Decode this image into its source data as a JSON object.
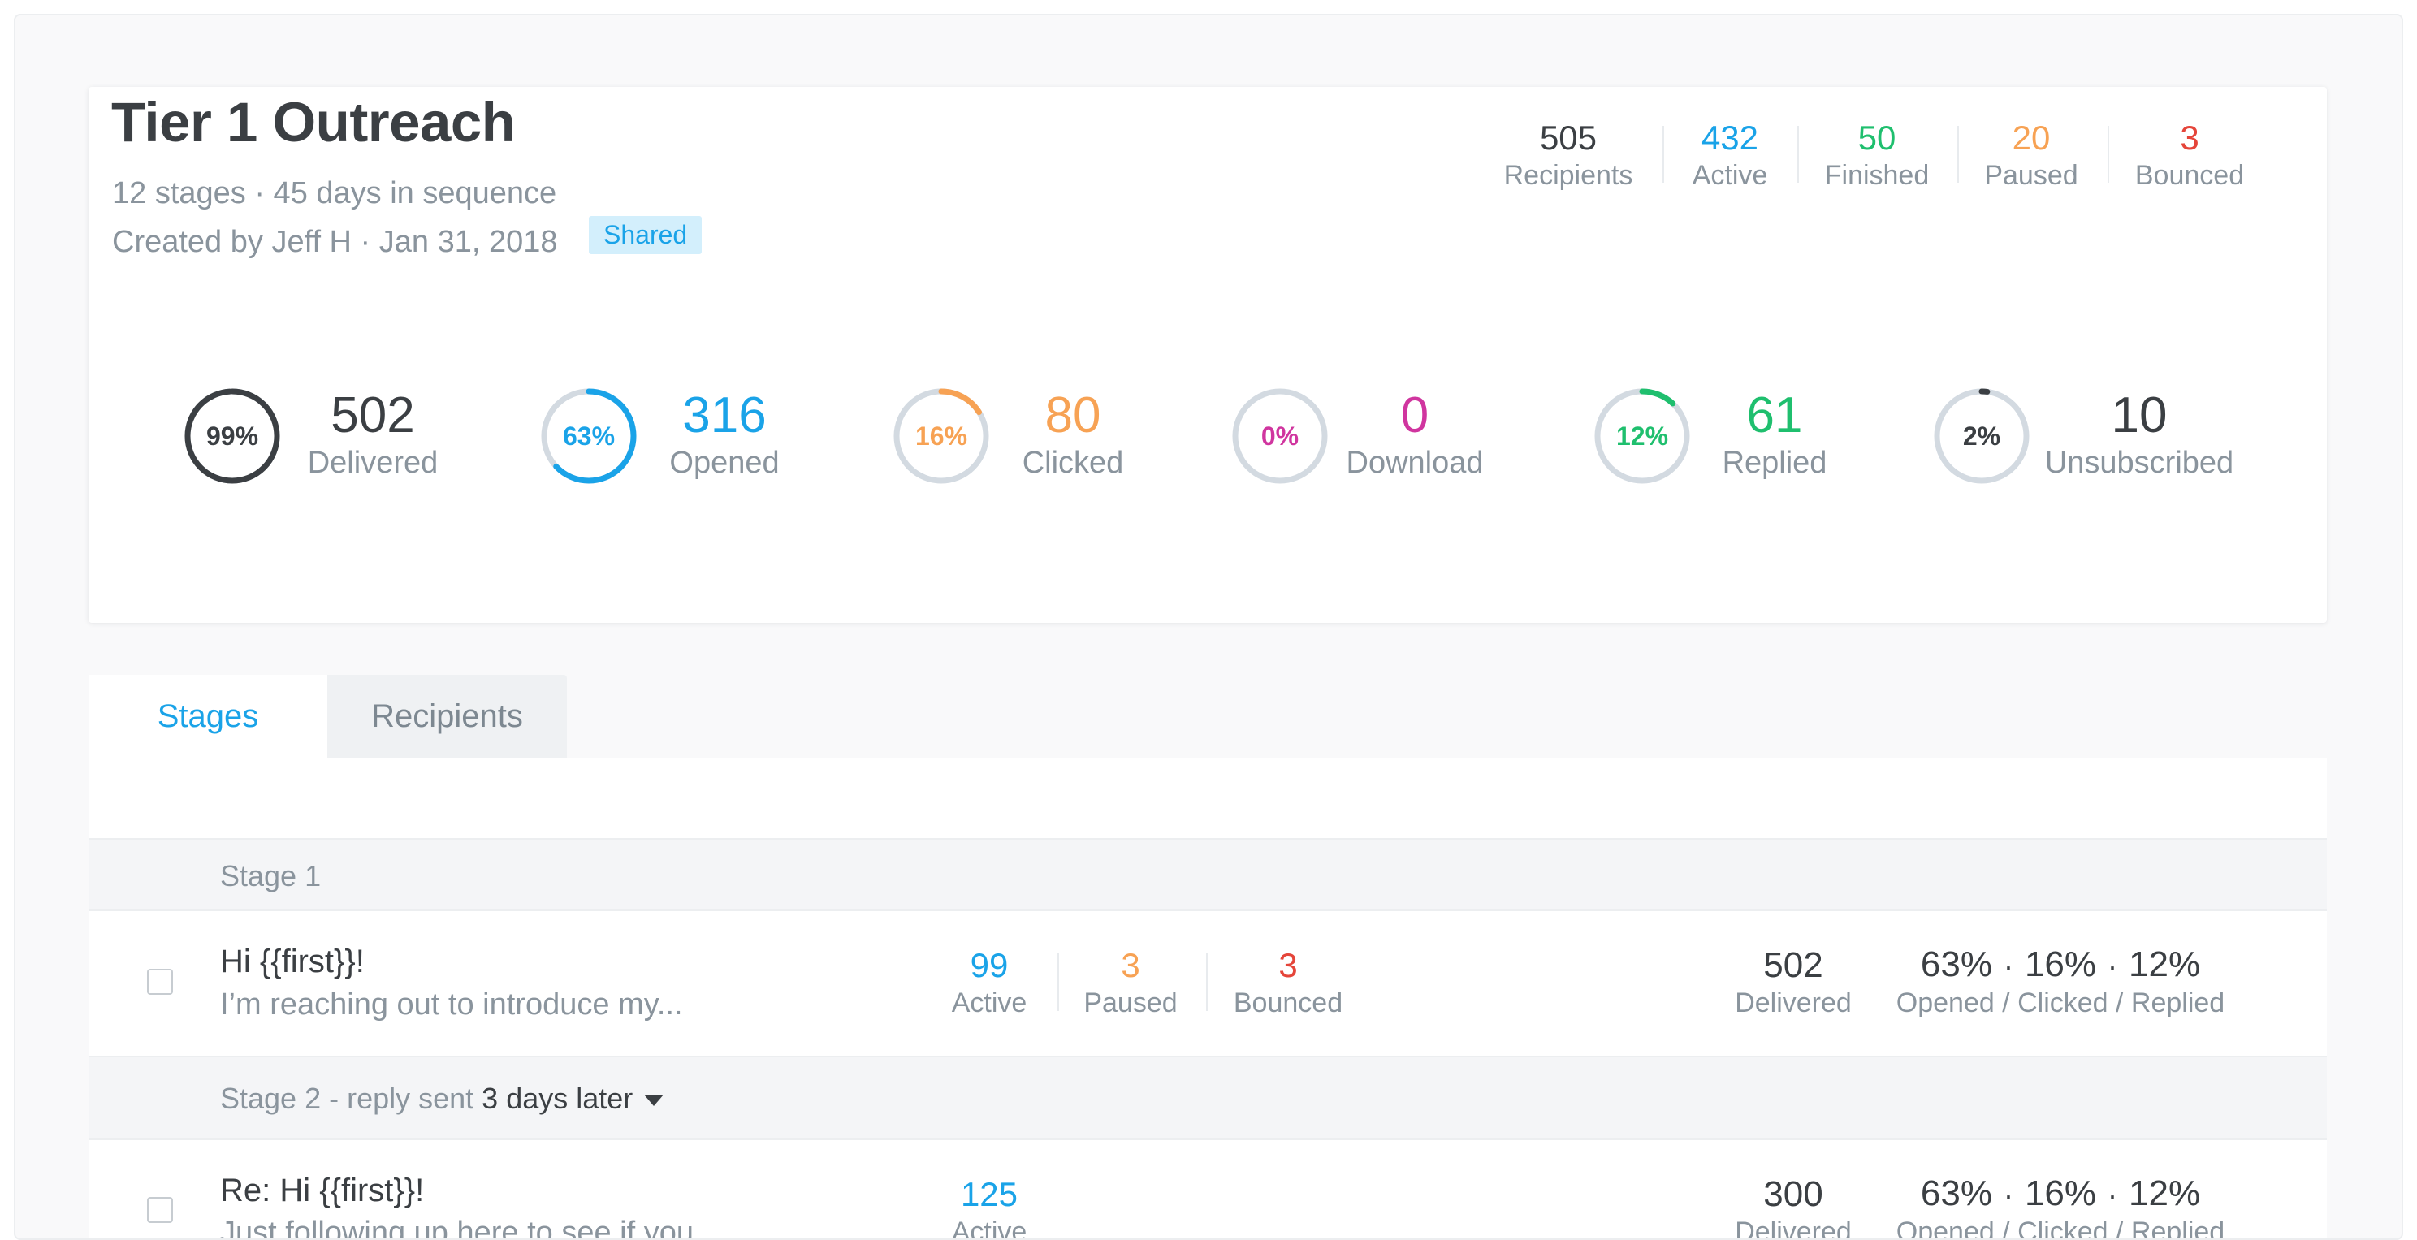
{
  "sequence": {
    "title": "Tier 1 Outreach",
    "meta_line1": "12 stages · 45 days in sequence",
    "meta_line2": "Created by Jeff H · Jan 31, 2018",
    "badge": "Shared"
  },
  "summary": [
    {
      "value": "505",
      "label": "Recipients",
      "color": "#3b3f43"
    },
    {
      "value": "432",
      "label": "Active",
      "color": "#1aa3e8"
    },
    {
      "value": "50",
      "label": "Finished",
      "color": "#1fbf6e"
    },
    {
      "value": "20",
      "label": "Paused",
      "color": "#f7a254"
    },
    {
      "value": "3",
      "label": "Bounced",
      "color": "#e5453a"
    }
  ],
  "metrics": [
    {
      "pct_label": "99%",
      "pct": 0.99,
      "value": "502",
      "label": "Delivered",
      "color": "#3b3f43"
    },
    {
      "pct_label": "63%",
      "pct": 0.63,
      "value": "316",
      "label": "Opened",
      "color": "#1aa3e8"
    },
    {
      "pct_label": "16%",
      "pct": 0.16,
      "value": "80",
      "label": "Clicked",
      "color": "#f7a254"
    },
    {
      "pct_label": "0%",
      "pct": 0.0,
      "value": "0",
      "label": "Download",
      "color": "#d0359f"
    },
    {
      "pct_label": "12%",
      "pct": 0.12,
      "value": "61",
      "label": "Replied",
      "color": "#1fbf6e"
    },
    {
      "pct_label": "2%",
      "pct": 0.02,
      "value": "10",
      "label": "Unsubscribed",
      "color": "#3b3f43"
    }
  ],
  "tabs": [
    {
      "label": "Stages",
      "active": true
    },
    {
      "label": "Recipients",
      "active": false
    }
  ],
  "stages": [
    {
      "header": "Stage 1",
      "subject": "Hi {{first}}!",
      "preview": "I’m reaching out to introduce my...",
      "counts": [
        {
          "value": "99",
          "label": "Active"
        },
        {
          "value": "3",
          "label": "Paused"
        },
        {
          "value": "3",
          "label": "Bounced"
        }
      ],
      "delivered": {
        "value": "502",
        "label": "Delivered"
      },
      "rates": {
        "opened": "63%",
        "clicked": "16%",
        "replied": "12%",
        "dot": "·",
        "label": "Opened / Clicked / Replied"
      }
    },
    {
      "header_prefix": "Stage 2 - ",
      "header_reply": "reply sent ",
      "header_delay": "3 days later",
      "subject": "Re: Hi {{first}}!",
      "preview": "Just following up here to see if you...",
      "counts": [
        {
          "value": "125",
          "label": "Active"
        }
      ],
      "delivered": {
        "value": "300",
        "label": "Delivered"
      },
      "rates": {
        "opened": "63%",
        "clicked": "16%",
        "replied": "12%",
        "dot": "·",
        "label": "Opened / Clicked / Replied"
      }
    }
  ],
  "colors": {
    "accent": "#1aa3e8",
    "success": "#1fbf6e",
    "warning": "#f7a254",
    "danger": "#e5453a",
    "magenta": "#d0359f",
    "ring_track": "#d3dae1"
  }
}
